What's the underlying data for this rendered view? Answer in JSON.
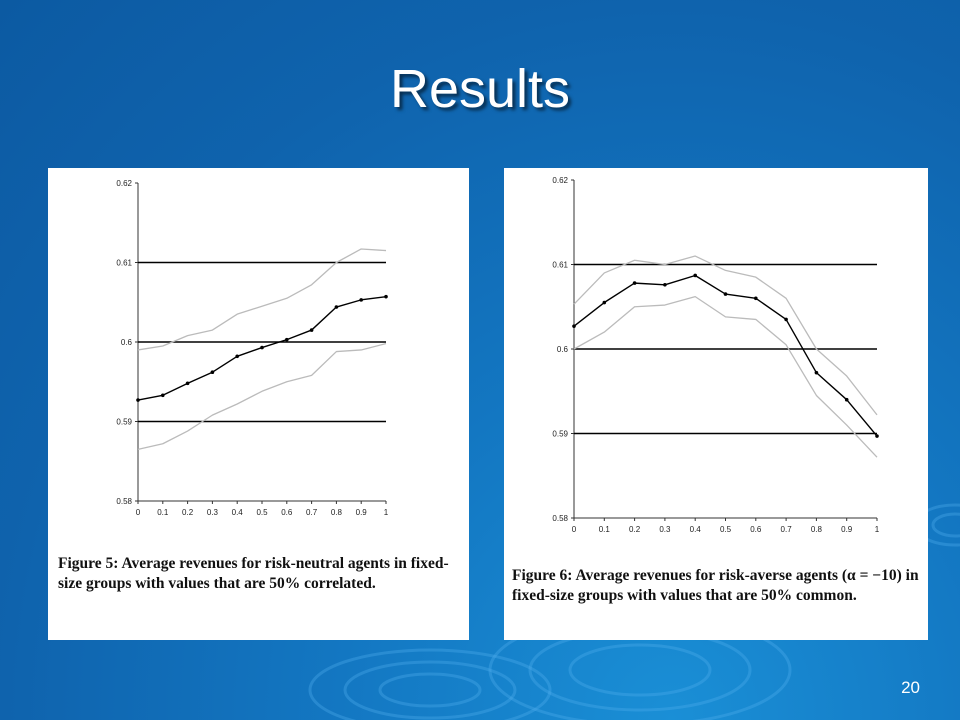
{
  "slide": {
    "title": "Results",
    "page_number": "20",
    "colors": {
      "background": "#1377c2",
      "panel": "#ffffff",
      "title_text": "#ffffff"
    }
  },
  "chart_data": [
    {
      "type": "line",
      "x": [
        0,
        0.1,
        0.2,
        0.3,
        0.4,
        0.5,
        0.6,
        0.7,
        0.8,
        0.9,
        1
      ],
      "x_tick_labels": [
        "0",
        "0.1",
        "0.2",
        "0.3",
        "0.4",
        "0.5",
        "0.6",
        "0.7",
        "0.8",
        "0.9",
        "1"
      ],
      "y_tick_labels": [
        "0.62",
        "0.61",
        "0.6",
        "0.59",
        "0.58"
      ],
      "y_ticks": [
        0.62,
        0.61,
        0.6,
        0.59,
        0.58
      ],
      "ylim": [
        0.58,
        0.62
      ],
      "xlim": [
        0,
        1
      ],
      "gridlines_y": [
        0.61,
        0.6,
        0.59
      ],
      "series": [
        {
          "role": "mean",
          "color": "#000000",
          "markers": true,
          "values": [
            0.5927,
            0.5933,
            0.5948,
            0.5962,
            0.5982,
            0.5993,
            0.6003,
            0.6015,
            0.6044,
            0.6053,
            0.6057
          ]
        },
        {
          "role": "upper-band",
          "color": "#bbbbbb",
          "markers": false,
          "values": [
            0.599,
            0.5995,
            0.6008,
            0.6015,
            0.6035,
            0.6045,
            0.6055,
            0.6072,
            0.61,
            0.6117,
            0.6115
          ]
        },
        {
          "role": "lower-band",
          "color": "#bbbbbb",
          "markers": false,
          "values": [
            0.5865,
            0.5872,
            0.5888,
            0.5908,
            0.5922,
            0.5938,
            0.595,
            0.5958,
            0.5988,
            0.599,
            0.5998
          ]
        }
      ],
      "caption": {
        "label": "Figure 5:",
        "text": "Average revenues for risk-neutral agents in fixed-size groups with values that are 50% correlated."
      }
    },
    {
      "type": "line",
      "x": [
        0,
        0.1,
        0.2,
        0.3,
        0.4,
        0.5,
        0.6,
        0.7,
        0.8,
        0.9,
        1
      ],
      "x_tick_labels": [
        "0",
        "0.1",
        "0.2",
        "0.3",
        "0.4",
        "0.5",
        "0.6",
        "0.7",
        "0.8",
        "0.9",
        "1"
      ],
      "y_tick_labels": [
        "0.62",
        "0.61",
        "0.6",
        "0.59",
        "0.58"
      ],
      "y_ticks": [
        0.62,
        0.61,
        0.6,
        0.59,
        0.58
      ],
      "ylim": [
        0.58,
        0.62
      ],
      "xlim": [
        0,
        1
      ],
      "gridlines_y": [
        0.61,
        0.6,
        0.59
      ],
      "series": [
        {
          "role": "mean",
          "color": "#000000",
          "markers": true,
          "values": [
            0.6027,
            0.6055,
            0.6078,
            0.6076,
            0.6087,
            0.6065,
            0.606,
            0.6035,
            0.5972,
            0.594,
            0.5897
          ]
        },
        {
          "role": "upper-band",
          "color": "#bbbbbb",
          "markers": false,
          "values": [
            0.6053,
            0.609,
            0.6105,
            0.61,
            0.611,
            0.6093,
            0.6085,
            0.606,
            0.6,
            0.5968,
            0.5922
          ]
        },
        {
          "role": "lower-band",
          "color": "#bbbbbb",
          "markers": false,
          "values": [
            0.6,
            0.602,
            0.605,
            0.6052,
            0.6062,
            0.6038,
            0.6035,
            0.6005,
            0.5945,
            0.591,
            0.5872
          ]
        }
      ],
      "caption": {
        "label": "Figure 6:",
        "text": "Average revenues for risk-averse agents (α = −10) in fixed-size groups with values that are 50% common."
      }
    }
  ]
}
